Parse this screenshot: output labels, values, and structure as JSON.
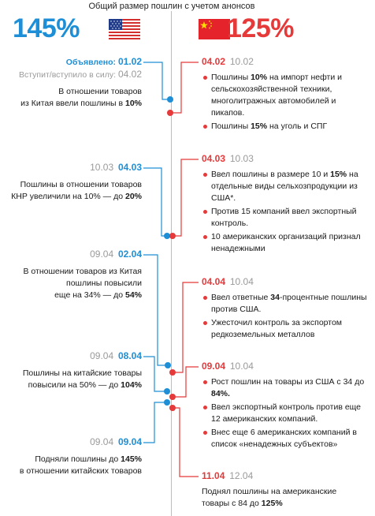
{
  "header": {
    "title": "Общий размер пошлин с учетом анонсов",
    "us_pct": "145%",
    "cn_pct": "125%"
  },
  "colors": {
    "us": "#1e8fd6",
    "cn": "#e5393a",
    "line": "#bdbdbd"
  },
  "us_events": [
    {
      "announced_label": "Объявлено:",
      "announced": "01.02",
      "effective_label": "Вступит/вступило в силу:",
      "effective": "04.02",
      "text_a": "В отношении товаров",
      "text_b": "из Китая ввели пошлины в ",
      "text_bold": "10%"
    },
    {
      "effective": "10.03",
      "announced": "04.03",
      "text_a": "Пошлины в отношении товаров",
      "text_b": "КНР увеличили на 10% — до ",
      "text_bold": "20%"
    },
    {
      "effective": "09.04",
      "announced": "02.04",
      "text_a": "В отношении товаров из Китая",
      "text_b": "пошлины повысили",
      "text_c": "еще на 34% — до ",
      "text_bold": "54%"
    },
    {
      "effective": "09.04",
      "announced": "08.04",
      "text_a": "Пошлины на китайские товары",
      "text_b": "повысили на 50% — до ",
      "text_bold": "104%"
    },
    {
      "effective": "09.04",
      "announced": "09.04",
      "text_a": "Подняли пошлины до ",
      "text_bold": "145%",
      "text_b": "в отношении китайских товаров"
    }
  ],
  "cn_events": [
    {
      "announced": "04.02",
      "effective": "10.02",
      "bullets": [
        {
          "pre": "Пошлины ",
          "bold": "10%",
          "post": " на импорт нефти и сельскохозяйственной техники, многолитражных автомобилей и пикапов."
        },
        {
          "pre": "Пошлины ",
          "bold": "15%",
          "post": " на уголь и СПГ"
        }
      ]
    },
    {
      "announced": "04.03",
      "effective": "10.03",
      "bullets": [
        {
          "pre": "Ввел пошлины в размере 10 и ",
          "bold": "15%",
          "post": " на отдельные виды сельхозпродукции из США*."
        },
        {
          "pre": "Против 15 компаний ввел экспортный контроль.",
          "bold": "",
          "post": ""
        },
        {
          "pre": "10 американских организаций признал ненадежными",
          "bold": "",
          "post": ""
        }
      ]
    },
    {
      "announced": "04.04",
      "effective": "10.04",
      "bullets": [
        {
          "pre": "Ввел ответные ",
          "bold": "34",
          "post": "-процентные пошлины против США."
        },
        {
          "pre": "Ужесточил контроль за экспортом редкоземельных металлов",
          "bold": "",
          "post": ""
        }
      ]
    },
    {
      "announced": "09.04",
      "effective": "10.04",
      "bullets": [
        {
          "pre": "Рост пошлин на товары из США с 34 до ",
          "bold": "84%.",
          "post": ""
        },
        {
          "pre": "Ввел экспортный контроль против еще 12 американских компаний.",
          "bold": "",
          "post": ""
        },
        {
          "pre": "Внес еще 6 американских компаний в список «ненадежных субъектов»",
          "bold": "",
          "post": ""
        }
      ]
    },
    {
      "announced": "11.04",
      "effective": "12.04",
      "text_a": "Поднял пошлины на американские",
      "text_b": "товары с 84 до ",
      "text_bold": "125%"
    }
  ]
}
